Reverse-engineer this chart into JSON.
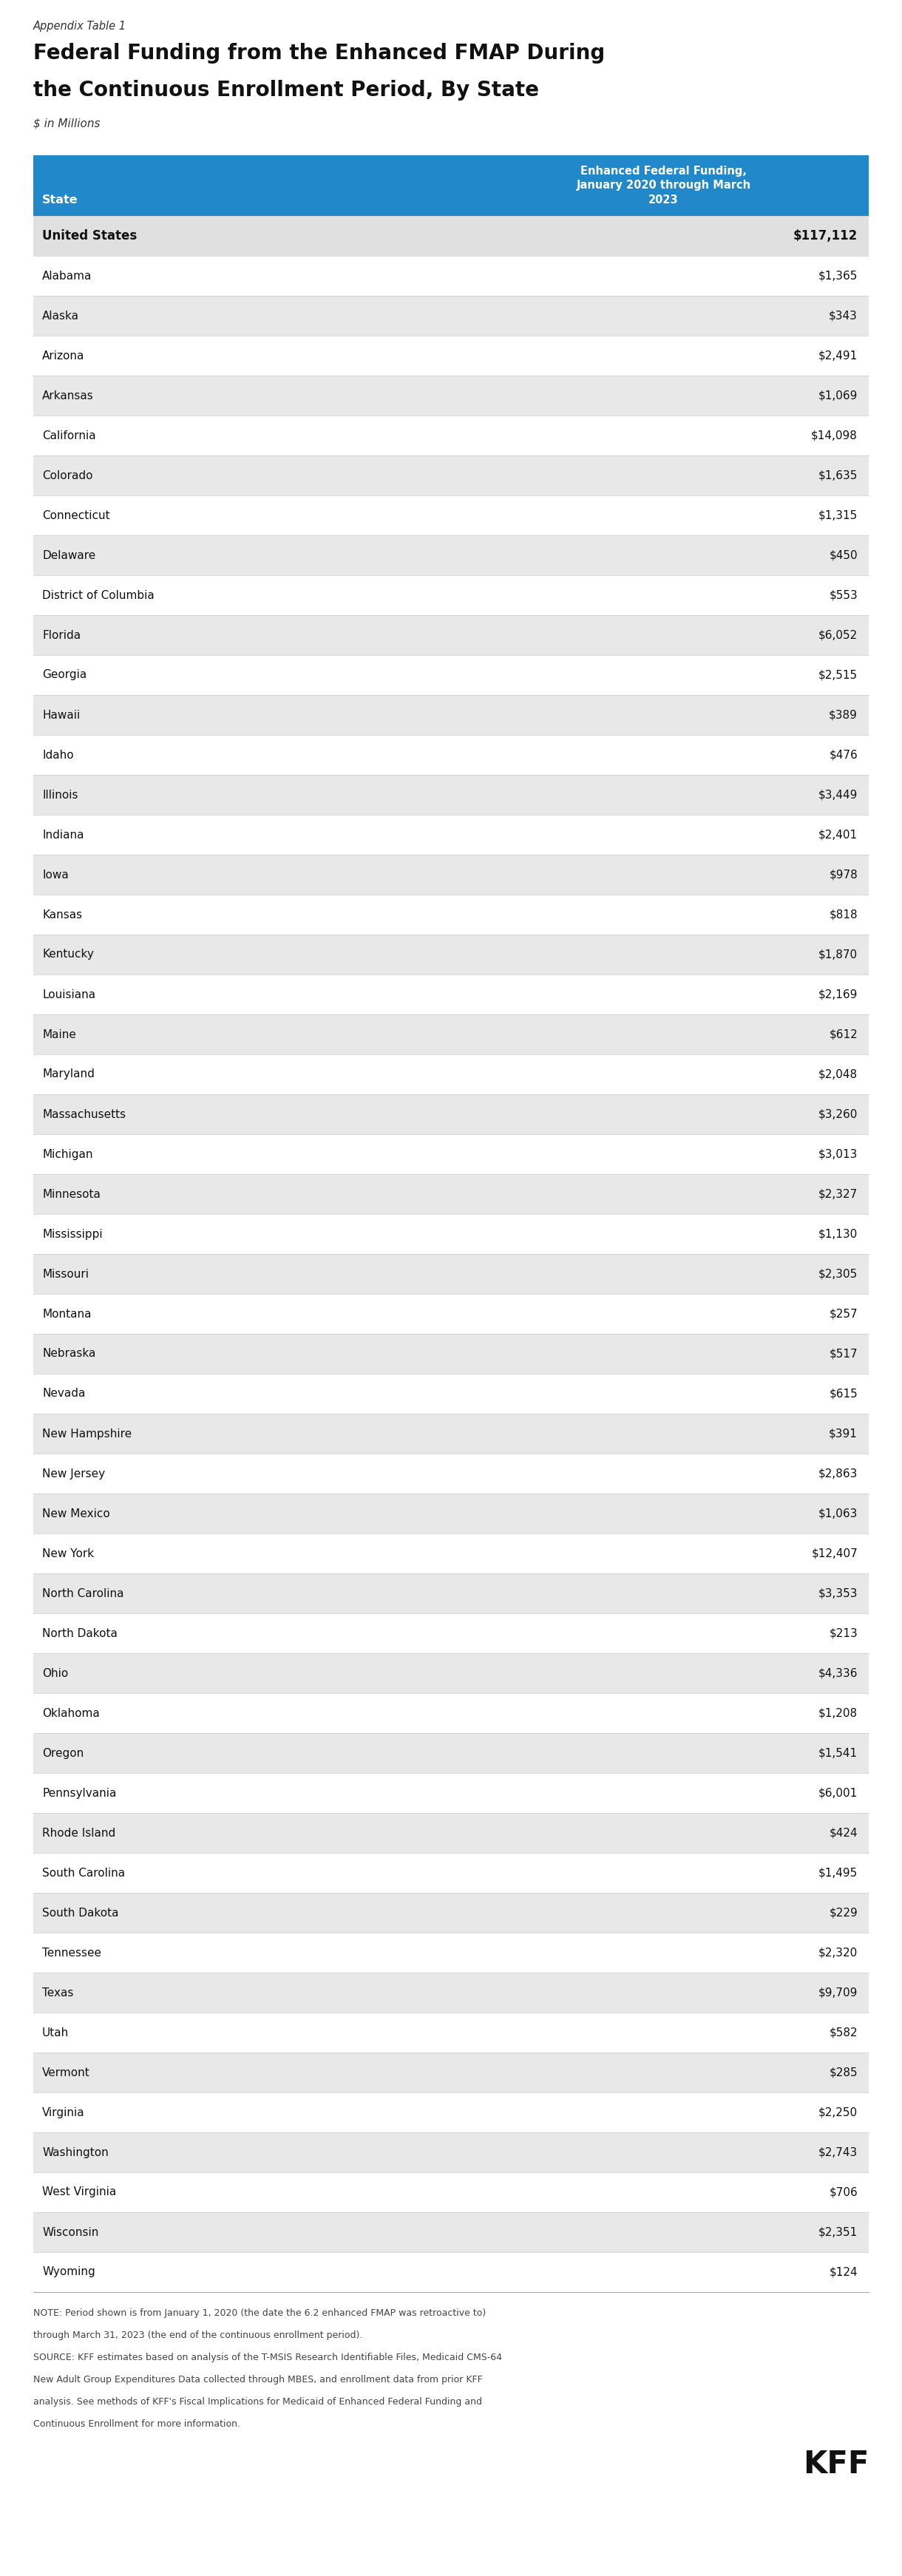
{
  "appendix_label": "Appendix Table 1",
  "title_line1": "Federal Funding from the Enhanced FMAP During",
  "title_line2": "the Continuous Enrollment Period, By State",
  "subtitle": "$ in Millions",
  "col1_header": "State",
  "col2_header": "Enhanced Federal Funding,\nJanuary 2020 through March\n2023",
  "header_bg": "#2188c9",
  "header_text_color": "#ffffff",
  "row_bg_odd": "#ffffff",
  "row_bg_even": "#e8e8e8",
  "bold_row_bg": "#e0e0e0",
  "states": [
    "United States",
    "Alabama",
    "Alaska",
    "Arizona",
    "Arkansas",
    "California",
    "Colorado",
    "Connecticut",
    "Delaware",
    "District of Columbia",
    "Florida",
    "Georgia",
    "Hawaii",
    "Idaho",
    "Illinois",
    "Indiana",
    "Iowa",
    "Kansas",
    "Kentucky",
    "Louisiana",
    "Maine",
    "Maryland",
    "Massachusetts",
    "Michigan",
    "Minnesota",
    "Mississippi",
    "Missouri",
    "Montana",
    "Nebraska",
    "Nevada",
    "New Hampshire",
    "New Jersey",
    "New Mexico",
    "New York",
    "North Carolina",
    "North Dakota",
    "Ohio",
    "Oklahoma",
    "Oregon",
    "Pennsylvania",
    "Rhode Island",
    "South Carolina",
    "South Dakota",
    "Tennessee",
    "Texas",
    "Utah",
    "Vermont",
    "Virginia",
    "Washington",
    "West Virginia",
    "Wisconsin",
    "Wyoming"
  ],
  "values": [
    "$117,112",
    "$1,365",
    "$343",
    "$2,491",
    "$1,069",
    "$14,098",
    "$1,635",
    "$1,315",
    "$450",
    "$553",
    "$6,052",
    "$2,515",
    "$389",
    "$476",
    "$3,449",
    "$2,401",
    "$978",
    "$818",
    "$1,870",
    "$2,169",
    "$612",
    "$2,048",
    "$3,260",
    "$3,013",
    "$2,327",
    "$1,130",
    "$2,305",
    "$257",
    "$517",
    "$615",
    "$391",
    "$2,863",
    "$1,063",
    "$12,407",
    "$3,353",
    "$213",
    "$4,336",
    "$1,208",
    "$1,541",
    "$6,001",
    "$424",
    "$1,495",
    "$229",
    "$2,320",
    "$9,709",
    "$582",
    "$285",
    "$2,250",
    "$2,743",
    "$706",
    "$2,351",
    "$124"
  ],
  "note_line1": "NOTE: Period shown is from January 1, 2020 (the date the 6.2 enhanced FMAP was retroactive to)",
  "note_line2": "through March 31, 2023 (the end of the continuous enrollment period).",
  "note_line3": "SOURCE: KFF estimates based on analysis of the T-MSIS Research Identifiable Files, Medicaid CMS-64",
  "note_line4": "New Adult Group Expenditures Data collected through MBES, and enrollment data from prior KFF",
  "note_line5": "analysis. See methods of KFF's Fiscal Implications for Medicaid of Enhanced Federal Funding and",
  "note_line6": "Continuous Enrollment for more information.",
  "kff_logo_text": "KFF",
  "background_color": "#ffffff",
  "text_color": "#333333",
  "title_color": "#111111"
}
